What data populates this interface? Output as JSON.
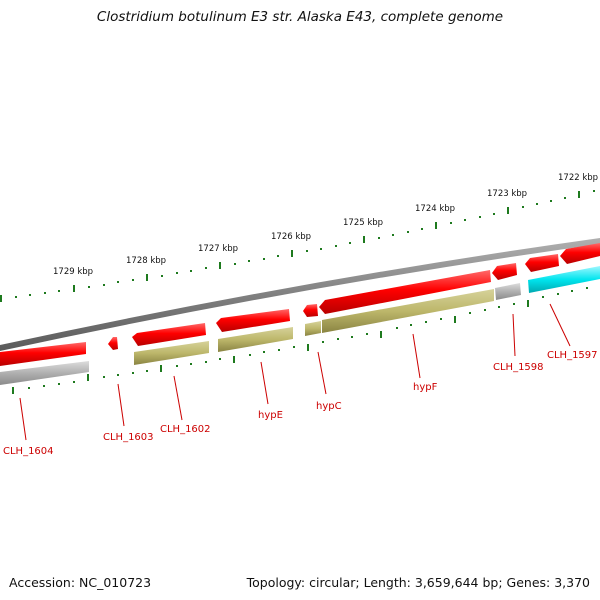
{
  "title": "Clostridium botulinum E3 str. Alaska E43, complete genome",
  "footer": {
    "accession": "Accession: NC_010723",
    "summary": "Topology: circular; Length: 3,659,644 bp; Genes: 3,370"
  },
  "scale_labels": [
    "1729 kbp",
    "1728 kbp",
    "1727 kbp",
    "1726 kbp",
    "1725 kbp",
    "1724 kbp",
    "1723 kbp",
    "1722 kbp"
  ],
  "gene_labels": [
    "CLH_1604",
    "CLH_1603",
    "CLH_1602",
    "hypE",
    "hypC",
    "hypF",
    "CLH_1598",
    "CLH_1597"
  ],
  "colors": {
    "cds": "#ee0000",
    "gene_feature": "#bdb76b",
    "other_feature": "#aaaaaa",
    "highlight_feature": "#00e5ee",
    "backbone": "#808080",
    "tick": "#1e7a1e",
    "label": "#cc0000"
  }
}
